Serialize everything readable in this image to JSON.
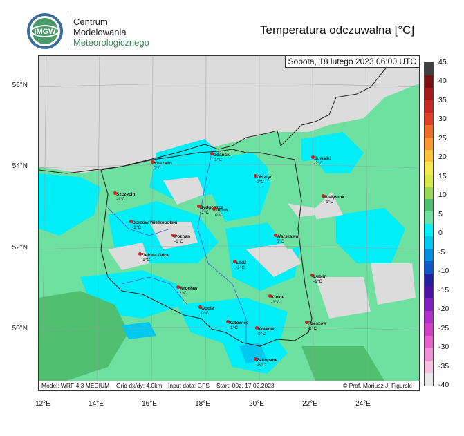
{
  "header": {
    "org_lines": [
      "Centrum",
      "Modelowania",
      "Meteorologicznego"
    ],
    "logo_text": "IMGW",
    "title": "Temperatura odczuwalna [°C]"
  },
  "map": {
    "date": "Sobota, 18 lutego 2023 06:00 UTC",
    "lat_labels": [
      "56°N",
      "54°N",
      "52°N",
      "50°N"
    ],
    "lon_labels": [
      "12°E",
      "14°E",
      "16°E",
      "18°E",
      "20°E",
      "22°E",
      "24°E"
    ],
    "info": {
      "model": "Model: WRF 4.3 MEDIUM",
      "grid": "Grid dx/dy: 4.0km",
      "input": "Input data: GFS",
      "start": "Start: 00z, 17.02.2023",
      "credit": "© Prof. Mariusz J. Figurski"
    },
    "cities": [
      {
        "name": "Gdańsk",
        "value": "-1°C"
      },
      {
        "name": "Koszalin",
        "value": "0°C"
      },
      {
        "name": "Suwałki",
        "value": "-2°C"
      },
      {
        "name": "Olsztyn",
        "value": "0°C"
      },
      {
        "name": "Szczecin",
        "value": "-1°C"
      },
      {
        "name": "Białystok",
        "value": "-1°C"
      },
      {
        "name": "Bydgoszcz",
        "value": "-1°C"
      },
      {
        "name": "Toruń",
        "value": "0°C"
      },
      {
        "name": "Gorzów Wielkopolski",
        "value": "-1°C"
      },
      {
        "name": "Poznań",
        "value": "-1°C"
      },
      {
        "name": "Warszawa",
        "value": "0°C"
      },
      {
        "name": "Zielona Góra",
        "value": "-1°C"
      },
      {
        "name": "Łódź",
        "value": "-1°C"
      },
      {
        "name": "Lublin",
        "value": "-1°C"
      },
      {
        "name": "Wrocław",
        "value": "2°C"
      },
      {
        "name": "Kielce",
        "value": "-1°C"
      },
      {
        "name": "Opole",
        "value": "0°C"
      },
      {
        "name": "Katowice",
        "value": "-1°C"
      },
      {
        "name": "Rzeszów",
        "value": "-1°C"
      },
      {
        "name": "Kraków",
        "value": "0°C"
      },
      {
        "name": "Zakopane",
        "value": "-6°C"
      }
    ]
  },
  "colorbar": {
    "labels": [
      "45",
      "40",
      "35",
      "30",
      "25",
      "20",
      "15",
      "10",
      "5",
      "0",
      "-5",
      "-10",
      "-15",
      "-20",
      "-25",
      "-30",
      "-35",
      "-40"
    ],
    "colors": [
      "#404040",
      "#7a1010",
      "#a81818",
      "#c82828",
      "#e04028",
      "#f06a2a",
      "#f8982e",
      "#fcc23a",
      "#f8e850",
      "#d8e848",
      "#98d858",
      "#50c070",
      "#6ce0a0",
      "#00f0f8",
      "#00c8f0",
      "#0090e0",
      "#1058c8",
      "#2020a0",
      "#5010a8",
      "#8020c0",
      "#b030c8",
      "#d040c0",
      "#e860c8",
      "#f090d8",
      "#f8c0e0",
      "#e8e8e8"
    ]
  }
}
